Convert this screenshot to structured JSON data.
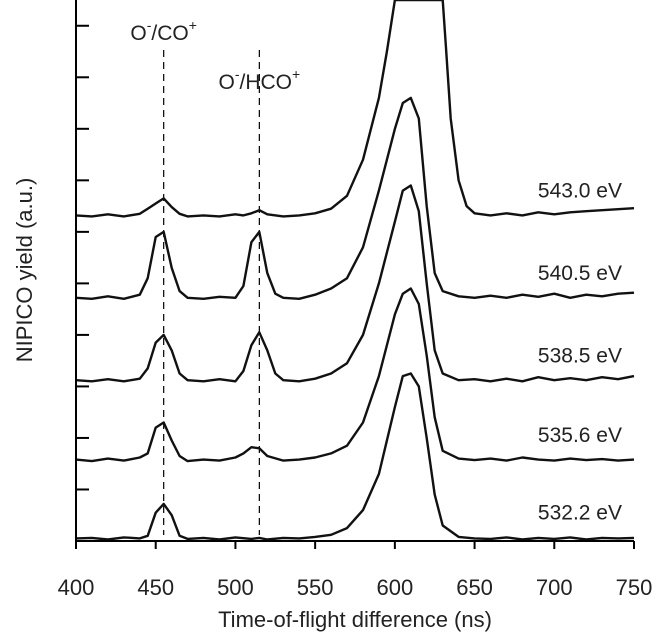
{
  "chart_data": {
    "type": "line",
    "xlabel": "Time-of-flight difference (ns)",
    "ylabel": "NIPICO yield (a.u.)",
    "xlim": [
      400,
      750
    ],
    "ylim": [
      0,
      10.5
    ],
    "x_ticks": [
      400,
      450,
      500,
      550,
      600,
      650,
      700,
      750
    ],
    "x_tick_labels": [
      "400",
      "450",
      "500",
      "550",
      "600",
      "650",
      "700",
      "750"
    ],
    "y_tick_values": [
      0,
      1,
      2,
      3,
      4,
      5,
      6,
      7,
      8,
      9,
      10
    ],
    "y_tick_labels": [],
    "grid": false,
    "annotations": [
      {
        "x": 455,
        "text": "O",
        "sup1": "-",
        "text2": "/CO",
        "sup2": "+"
      },
      {
        "x": 515,
        "text": "O",
        "sup1": "-",
        "text2": "/HCO",
        "sup2": "+"
      }
    ],
    "series": [
      {
        "name": "532.2 eV",
        "baseline": 0.05,
        "points": [
          [
            400,
            0.05
          ],
          [
            410,
            0.06
          ],
          [
            420,
            0.03
          ],
          [
            430,
            0.07
          ],
          [
            440,
            0.05
          ],
          [
            445,
            0.1
          ],
          [
            450,
            0.55
          ],
          [
            455,
            0.72
          ],
          [
            460,
            0.5
          ],
          [
            465,
            0.1
          ],
          [
            470,
            0.04
          ],
          [
            480,
            0.06
          ],
          [
            490,
            0.03
          ],
          [
            500,
            0.07
          ],
          [
            510,
            0.04
          ],
          [
            515,
            0.06
          ],
          [
            520,
            0.03
          ],
          [
            530,
            0.06
          ],
          [
            540,
            0.05
          ],
          [
            550,
            0.08
          ],
          [
            560,
            0.12
          ],
          [
            570,
            0.25
          ],
          [
            580,
            0.6
          ],
          [
            590,
            1.3
          ],
          [
            600,
            2.6
          ],
          [
            605,
            3.2
          ],
          [
            610,
            3.25
          ],
          [
            615,
            3.0
          ],
          [
            620,
            2.0
          ],
          [
            625,
            0.9
          ],
          [
            630,
            0.3
          ],
          [
            640,
            0.08
          ],
          [
            650,
            0.05
          ],
          [
            660,
            0.04
          ],
          [
            670,
            0.07
          ],
          [
            680,
            0.03
          ],
          [
            690,
            0.06
          ],
          [
            700,
            0.04
          ],
          [
            710,
            0.07
          ],
          [
            720,
            0.03
          ],
          [
            730,
            0.06
          ],
          [
            740,
            0.05
          ],
          [
            750,
            0.06
          ]
        ]
      },
      {
        "name": "535.6 eV",
        "baseline": 1.55,
        "points": [
          [
            400,
            1.58
          ],
          [
            410,
            1.55
          ],
          [
            420,
            1.6
          ],
          [
            430,
            1.56
          ],
          [
            440,
            1.62
          ],
          [
            445,
            1.7
          ],
          [
            450,
            2.2
          ],
          [
            455,
            2.3
          ],
          [
            460,
            1.95
          ],
          [
            465,
            1.65
          ],
          [
            470,
            1.55
          ],
          [
            480,
            1.58
          ],
          [
            490,
            1.56
          ],
          [
            500,
            1.62
          ],
          [
            505,
            1.7
          ],
          [
            510,
            1.82
          ],
          [
            515,
            1.8
          ],
          [
            520,
            1.65
          ],
          [
            530,
            1.56
          ],
          [
            540,
            1.58
          ],
          [
            550,
            1.62
          ],
          [
            560,
            1.7
          ],
          [
            570,
            1.85
          ],
          [
            580,
            2.3
          ],
          [
            590,
            3.2
          ],
          [
            600,
            4.4
          ],
          [
            605,
            4.8
          ],
          [
            610,
            4.9
          ],
          [
            615,
            4.6
          ],
          [
            620,
            3.6
          ],
          [
            625,
            2.4
          ],
          [
            630,
            1.75
          ],
          [
            640,
            1.6
          ],
          [
            650,
            1.57
          ],
          [
            660,
            1.6
          ],
          [
            670,
            1.56
          ],
          [
            680,
            1.62
          ],
          [
            690,
            1.58
          ],
          [
            700,
            1.56
          ],
          [
            710,
            1.6
          ],
          [
            720,
            1.57
          ],
          [
            730,
            1.59
          ],
          [
            740,
            1.56
          ],
          [
            750,
            1.58
          ]
        ]
      },
      {
        "name": "538.5 eV",
        "baseline": 3.1,
        "points": [
          [
            400,
            3.12
          ],
          [
            410,
            3.1
          ],
          [
            420,
            3.14
          ],
          [
            430,
            3.1
          ],
          [
            440,
            3.15
          ],
          [
            445,
            3.35
          ],
          [
            450,
            3.85
          ],
          [
            455,
            4.0
          ],
          [
            460,
            3.7
          ],
          [
            465,
            3.25
          ],
          [
            470,
            3.12
          ],
          [
            480,
            3.1
          ],
          [
            490,
            3.14
          ],
          [
            500,
            3.1
          ],
          [
            505,
            3.3
          ],
          [
            510,
            3.8
          ],
          [
            515,
            4.05
          ],
          [
            520,
            3.7
          ],
          [
            525,
            3.25
          ],
          [
            530,
            3.12
          ],
          [
            540,
            3.1
          ],
          [
            550,
            3.15
          ],
          [
            560,
            3.25
          ],
          [
            570,
            3.45
          ],
          [
            580,
            4.0
          ],
          [
            590,
            5.0
          ],
          [
            600,
            6.2
          ],
          [
            605,
            6.8
          ],
          [
            610,
            6.9
          ],
          [
            615,
            6.4
          ],
          [
            620,
            5.0
          ],
          [
            625,
            3.7
          ],
          [
            630,
            3.25
          ],
          [
            640,
            3.12
          ],
          [
            650,
            3.14
          ],
          [
            660,
            3.1
          ],
          [
            670,
            3.15
          ],
          [
            680,
            3.1
          ],
          [
            690,
            3.18
          ],
          [
            700,
            3.12
          ],
          [
            710,
            3.16
          ],
          [
            720,
            3.12
          ],
          [
            730,
            3.18
          ],
          [
            740,
            3.14
          ],
          [
            750,
            3.2
          ]
        ]
      },
      {
        "name": "540.5 eV",
        "baseline": 4.7,
        "points": [
          [
            400,
            4.72
          ],
          [
            410,
            4.7
          ],
          [
            420,
            4.75
          ],
          [
            430,
            4.7
          ],
          [
            440,
            4.78
          ],
          [
            445,
            5.1
          ],
          [
            450,
            5.9
          ],
          [
            455,
            6.0
          ],
          [
            460,
            5.3
          ],
          [
            465,
            4.85
          ],
          [
            470,
            4.72
          ],
          [
            480,
            4.7
          ],
          [
            490,
            4.74
          ],
          [
            500,
            4.72
          ],
          [
            505,
            4.95
          ],
          [
            510,
            5.8
          ],
          [
            515,
            6.0
          ],
          [
            520,
            5.2
          ],
          [
            525,
            4.8
          ],
          [
            530,
            4.72
          ],
          [
            540,
            4.7
          ],
          [
            550,
            4.78
          ],
          [
            560,
            4.9
          ],
          [
            570,
            5.1
          ],
          [
            580,
            5.7
          ],
          [
            590,
            6.8
          ],
          [
            600,
            8.0
          ],
          [
            605,
            8.5
          ],
          [
            610,
            8.6
          ],
          [
            615,
            8.2
          ],
          [
            620,
            6.5
          ],
          [
            625,
            5.2
          ],
          [
            630,
            4.85
          ],
          [
            640,
            4.75
          ],
          [
            650,
            4.72
          ],
          [
            660,
            4.76
          ],
          [
            670,
            4.72
          ],
          [
            680,
            4.78
          ],
          [
            690,
            4.74
          ],
          [
            700,
            4.8
          ],
          [
            710,
            4.72
          ],
          [
            720,
            4.78
          ],
          [
            730,
            4.75
          ],
          [
            740,
            4.8
          ],
          [
            750,
            4.82
          ]
        ]
      },
      {
        "name": "543.0 eV",
        "baseline": 6.3,
        "points": [
          [
            400,
            6.32
          ],
          [
            410,
            6.3
          ],
          [
            420,
            6.34
          ],
          [
            430,
            6.3
          ],
          [
            440,
            6.35
          ],
          [
            445,
            6.45
          ],
          [
            450,
            6.55
          ],
          [
            455,
            6.65
          ],
          [
            460,
            6.48
          ],
          [
            465,
            6.35
          ],
          [
            470,
            6.3
          ],
          [
            480,
            6.32
          ],
          [
            490,
            6.3
          ],
          [
            500,
            6.34
          ],
          [
            505,
            6.32
          ],
          [
            510,
            6.36
          ],
          [
            515,
            6.42
          ],
          [
            520,
            6.34
          ],
          [
            530,
            6.3
          ],
          [
            540,
            6.32
          ],
          [
            550,
            6.36
          ],
          [
            560,
            6.45
          ],
          [
            570,
            6.7
          ],
          [
            580,
            7.4
          ],
          [
            590,
            8.6
          ],
          [
            595,
            9.5
          ],
          [
            600,
            10.5
          ],
          [
            630,
            10.5
          ],
          [
            632,
            9.6
          ],
          [
            635,
            8.2
          ],
          [
            640,
            7.0
          ],
          [
            645,
            6.5
          ],
          [
            650,
            6.36
          ],
          [
            660,
            6.32
          ],
          [
            670,
            6.36
          ],
          [
            680,
            6.32
          ],
          [
            690,
            6.38
          ],
          [
            700,
            6.34
          ],
          [
            710,
            6.38
          ],
          [
            720,
            6.4
          ],
          [
            730,
            6.42
          ],
          [
            740,
            6.44
          ],
          [
            750,
            6.46
          ]
        ]
      }
    ]
  }
}
